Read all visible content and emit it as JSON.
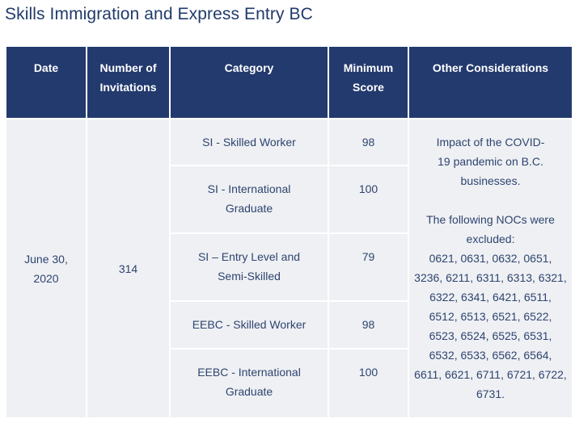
{
  "title": "Skills Immigration and Express Entry BC",
  "headers": {
    "date": "Date",
    "invitations": "Number of Invitations",
    "category": "Category",
    "score": "Minimum Score",
    "other": "Other Considerations"
  },
  "row": {
    "date": "June 30, 2020",
    "invitations": "314",
    "categories": [
      {
        "name": "SI - Skilled Worker",
        "score": "98"
      },
      {
        "name": "SI - International Graduate",
        "score": "100"
      },
      {
        "name": "SI – Entry Level and Semi-Skilled",
        "score": "79"
      },
      {
        "name": "EEBC - Skilled Worker",
        "score": "98"
      },
      {
        "name": "EEBC - International Graduate",
        "score": "100"
      }
    ],
    "other": {
      "impact": "Impact of the COVID-19 pandemic on B.C. businesses.",
      "excluded_intro": "The following NOCs were excluded:",
      "noc_list": "0621, 0631, 0632, 0651, 3236, 6211, 6311, 6313, 6321, 6322, 6341, 6421, 6511, 6512, 6513, 6521, 6522, 6523, 6524, 6525, 6531, 6532, 6533, 6562, 6564, 6611, 6621, 6711, 6721, 6722, 6731."
    }
  },
  "colors": {
    "header_bg": "#233a6e",
    "cell_bg": "#eef0f3",
    "title": "#213a6b"
  }
}
